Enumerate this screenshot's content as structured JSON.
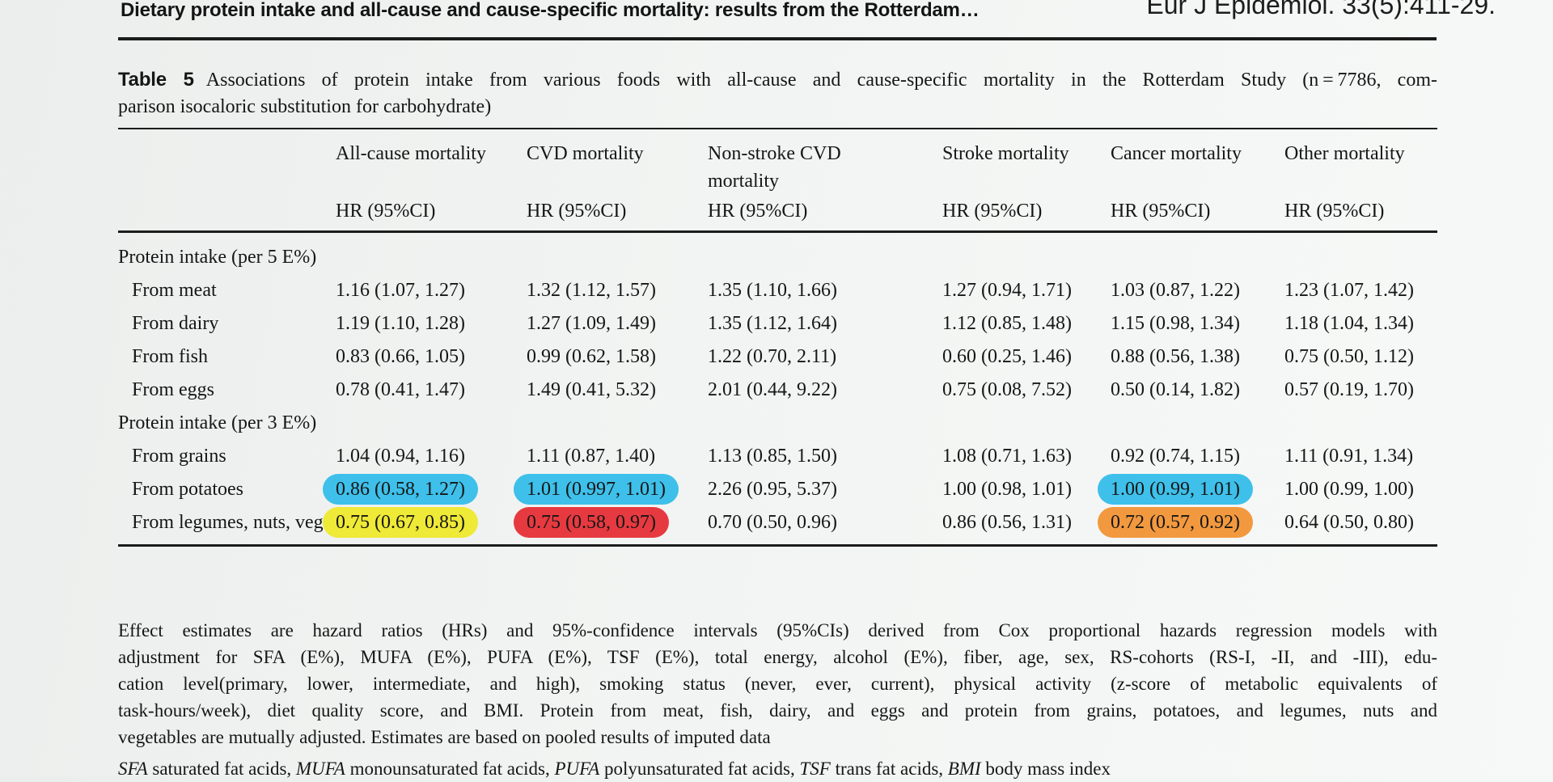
{
  "header": {
    "running_title": "Dietary protein intake and all-cause and cause-specific mortality: results from the Rotterdam…",
    "journal_ref": "Eur J Epidemiol. 33(5):411-29."
  },
  "caption": {
    "label": "Table 5",
    "line1": "Associations of protein intake from various foods with all-cause and cause-specific mortality in the Rotterdam Study (n = 7786, com-",
    "line2": "parison isocaloric substitution for carbohydrate)"
  },
  "table": {
    "columns": [
      {
        "title": "All-cause mortality",
        "subtitle": "HR (95%CI)"
      },
      {
        "title": "CVD mortality",
        "subtitle": "HR (95%CI)"
      },
      {
        "title": "Non-stroke CVD mortality",
        "subtitle": "HR (95%CI)"
      },
      {
        "title": "Stroke mortality",
        "subtitle": "HR (95%CI)"
      },
      {
        "title": "Cancer mortality",
        "subtitle": "HR (95%CI)"
      },
      {
        "title": "Other mortality",
        "subtitle": "HR (95%CI)"
      }
    ],
    "rows": [
      {
        "type": "section",
        "label": "Protein intake (per 5 E%)"
      },
      {
        "type": "item",
        "label": "From meat",
        "values": [
          "1.16 (1.07, 1.27)",
          "1.32 (1.12, 1.57)",
          "1.35 (1.10, 1.66)",
          "1.27 (0.94, 1.71)",
          "1.03 (0.87, 1.22)",
          "1.23 (1.07, 1.42)"
        ],
        "highlights": [
          null,
          null,
          null,
          null,
          null,
          null
        ]
      },
      {
        "type": "item",
        "label": "From dairy",
        "values": [
          "1.19 (1.10, 1.28)",
          "1.27 (1.09, 1.49)",
          "1.35 (1.12, 1.64)",
          "1.12 (0.85, 1.48)",
          "1.15 (0.98, 1.34)",
          "1.18 (1.04, 1.34)"
        ],
        "highlights": [
          null,
          null,
          null,
          null,
          null,
          null
        ]
      },
      {
        "type": "item",
        "label": "From fish",
        "values": [
          "0.83 (0.66, 1.05)",
          "0.99 (0.62, 1.58)",
          "1.22 (0.70, 2.11)",
          "0.60 (0.25, 1.46)",
          "0.88 (0.56, 1.38)",
          "0.75 (0.50, 1.12)"
        ],
        "highlights": [
          null,
          null,
          null,
          null,
          null,
          null
        ]
      },
      {
        "type": "item",
        "label": "From eggs",
        "values": [
          "0.78 (0.41, 1.47)",
          "1.49 (0.41, 5.32)",
          "2.01 (0.44, 9.22)",
          "0.75 (0.08, 7.52)",
          "0.50 (0.14, 1.82)",
          "0.57 (0.19, 1.70)"
        ],
        "highlights": [
          null,
          null,
          null,
          null,
          null,
          null
        ]
      },
      {
        "type": "section",
        "label": "Protein intake (per 3 E%)"
      },
      {
        "type": "item",
        "label": "From grains",
        "values": [
          "1.04 (0.94, 1.16)",
          "1.11 (0.87, 1.40)",
          "1.13 (0.85, 1.50)",
          "1.08 (0.71, 1.63)",
          "0.92 (0.74, 1.15)",
          "1.11 (0.91, 1.34)"
        ],
        "highlights": [
          null,
          null,
          null,
          null,
          null,
          null
        ]
      },
      {
        "type": "item",
        "label": "From potatoes",
        "values": [
          "0.86 (0.58, 1.27)",
          "1.01 (0.997, 1.01)",
          "2.26 (0.95, 5.37)",
          "1.00 (0.98, 1.01)",
          "1.00 (0.99, 1.01)",
          "1.00 (0.99, 1.00)"
        ],
        "highlights": [
          "blue",
          "blue",
          null,
          null,
          "blue",
          null
        ]
      },
      {
        "type": "item",
        "label": "From legumes, nuts, vegetables, and fruits",
        "values": [
          "0.75 (0.67, 0.85)",
          "0.75 (0.58, 0.97)",
          "0.70 (0.50, 0.96)",
          "0.86 (0.56, 1.31)",
          "0.72 (0.57, 0.92)",
          "0.64 (0.50, 0.80)"
        ],
        "highlights": [
          "yellow",
          "red",
          null,
          null,
          "orange",
          null
        ]
      }
    ]
  },
  "footnotes": {
    "lines": [
      "Effect estimates are hazard ratios (HRs) and 95%-confidence intervals (95%CIs) derived from Cox proportional hazards regression models with",
      "adjustment for SFA (E%), MUFA (E%), PUFA (E%), TSF (E%), total energy, alcohol (E%), fiber, age, sex, RS-cohorts (RS-I, -II, and -III), edu-",
      "cation level(primary, lower, intermediate, and high), smoking status (never, ever, current), physical activity (z-score of metabolic equivalents of",
      "task-hours/week), diet quality score, and BMI. Protein from meat, fish, dairy, and eggs and protein from grains, potatoes, and legumes, nuts and",
      "vegetables are mutually adjusted. Estimates are based on pooled results of imputed data"
    ],
    "abbrev_segments": [
      {
        "text": "SFA",
        "italic": true
      },
      {
        "text": " saturated fat acids, ",
        "italic": false
      },
      {
        "text": "MUFA",
        "italic": true
      },
      {
        "text": " monounsaturated fat acids, ",
        "italic": false
      },
      {
        "text": "PUFA",
        "italic": true
      },
      {
        "text": " polyunsaturated fat acids, ",
        "italic": false
      },
      {
        "text": "TSF",
        "italic": true
      },
      {
        "text": " trans fat acids, ",
        "italic": false
      },
      {
        "text": "BMI",
        "italic": true
      },
      {
        "text": " body mass index",
        "italic": false
      }
    ]
  },
  "colors": {
    "highlight_blue": "#3ec0ea",
    "highlight_yellow": "#efe937",
    "highlight_red": "#e63a40",
    "highlight_orange": "#f2993f"
  }
}
